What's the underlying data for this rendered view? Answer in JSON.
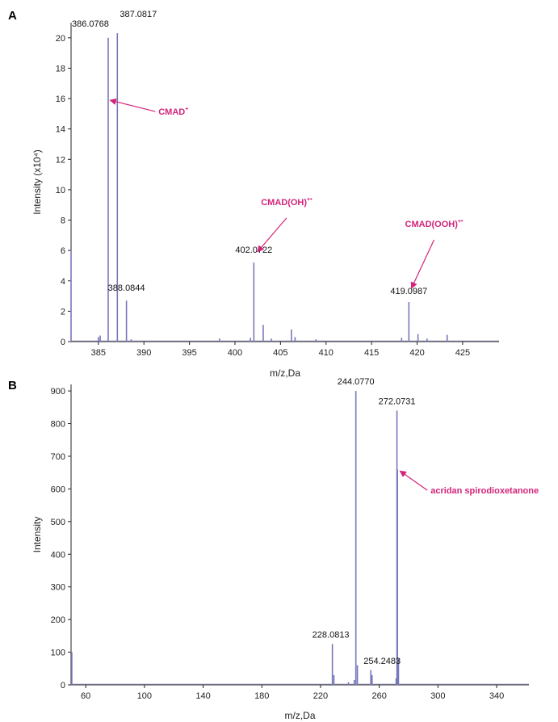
{
  "colors": {
    "trace": "#7777bb",
    "annotation": "#d4247a",
    "axis": "#222222"
  },
  "chart_data": [
    {
      "panel": "A",
      "type": "line",
      "title": "",
      "xlabel": "m/z,Da",
      "ylabel": "Intensity (x10⁴)",
      "xlim": [
        382,
        429
      ],
      "ylim": [
        0,
        21
      ],
      "xticks": [
        385,
        390,
        395,
        400,
        405,
        410,
        415,
        420,
        425
      ],
      "yticks": [
        0,
        2,
        4,
        6,
        8,
        10,
        12,
        14,
        16,
        18,
        20
      ],
      "grid": false,
      "peaks": [
        {
          "x": 382.0,
          "y": 6.0
        },
        {
          "x": 385.0,
          "y": 0.3
        },
        {
          "x": 385.2,
          "y": 0.4
        },
        {
          "x": 386.0768,
          "y": 20.0
        },
        {
          "x": 387.0817,
          "y": 20.3
        },
        {
          "x": 388.0844,
          "y": 2.7
        },
        {
          "x": 388.6,
          "y": 0.15
        },
        {
          "x": 398.3,
          "y": 0.2
        },
        {
          "x": 401.7,
          "y": 0.25
        },
        {
          "x": 402.0722,
          "y": 5.2
        },
        {
          "x": 403.1,
          "y": 1.1
        },
        {
          "x": 404.0,
          "y": 0.2
        },
        {
          "x": 406.2,
          "y": 0.8
        },
        {
          "x": 406.6,
          "y": 0.3
        },
        {
          "x": 408.9,
          "y": 0.15
        },
        {
          "x": 418.3,
          "y": 0.25
        },
        {
          "x": 419.0987,
          "y": 2.6
        },
        {
          "x": 420.1,
          "y": 0.5
        },
        {
          "x": 421.1,
          "y": 0.2
        },
        {
          "x": 423.3,
          "y": 0.45
        }
      ],
      "peak_labels": [
        {
          "x": 386.0768,
          "y": 20.0,
          "text": "386.0768"
        },
        {
          "x": 387.0817,
          "y": 20.3,
          "text": "387.0817"
        },
        {
          "x": 388.0844,
          "y": 2.7,
          "text": "388.0844"
        },
        {
          "x": 402.0722,
          "y": 5.2,
          "text": "402.0722"
        },
        {
          "x": 419.0987,
          "y": 2.6,
          "text": "419.0987"
        }
      ],
      "annotations": [
        {
          "text": "CMAD",
          "sup": "+",
          "x": 386.1,
          "y": 16.0
        },
        {
          "text": "CMAD(OH)",
          "sup": "+•",
          "x": 402.3,
          "y": 5.8
        },
        {
          "text": "CMAD(OOH)",
          "sup": "+•",
          "x": 419.2,
          "y": 3.4
        }
      ]
    },
    {
      "panel": "B",
      "type": "line",
      "title": "",
      "xlabel": "m/z,Da",
      "ylabel": "Intensity",
      "xlim": [
        50,
        362
      ],
      "ylim": [
        0,
        920
      ],
      "xticks": [
        60,
        100,
        140,
        180,
        220,
        260,
        300,
        340
      ],
      "yticks": [
        0,
        100,
        200,
        300,
        400,
        500,
        600,
        700,
        800,
        900
      ],
      "grid": false,
      "peaks": [
        {
          "x": 50.5,
          "y": 100
        },
        {
          "x": 228.0813,
          "y": 125
        },
        {
          "x": 229.1,
          "y": 30
        },
        {
          "x": 239.0,
          "y": 8
        },
        {
          "x": 243.0,
          "y": 15
        },
        {
          "x": 244.077,
          "y": 900
        },
        {
          "x": 245.1,
          "y": 60
        },
        {
          "x": 254.2483,
          "y": 45
        },
        {
          "x": 255.1,
          "y": 30
        },
        {
          "x": 271.5,
          "y": 20
        },
        {
          "x": 272.0731,
          "y": 840
        },
        {
          "x": 272.4,
          "y": 660
        },
        {
          "x": 273.1,
          "y": 80
        }
      ],
      "peak_labels": [
        {
          "x": 228.0813,
          "y": 125,
          "text": "228.0813"
        },
        {
          "x": 244.077,
          "y": 900,
          "text": "244.0770"
        },
        {
          "x": 254.2483,
          "y": 45,
          "text": "254.2483"
        },
        {
          "x": 272.0731,
          "y": 840,
          "text": "272.0731"
        }
      ],
      "annotations": [
        {
          "text": "acridan spirodioxetanone",
          "sup": "",
          "x": 273.0,
          "y": 660
        }
      ]
    }
  ]
}
